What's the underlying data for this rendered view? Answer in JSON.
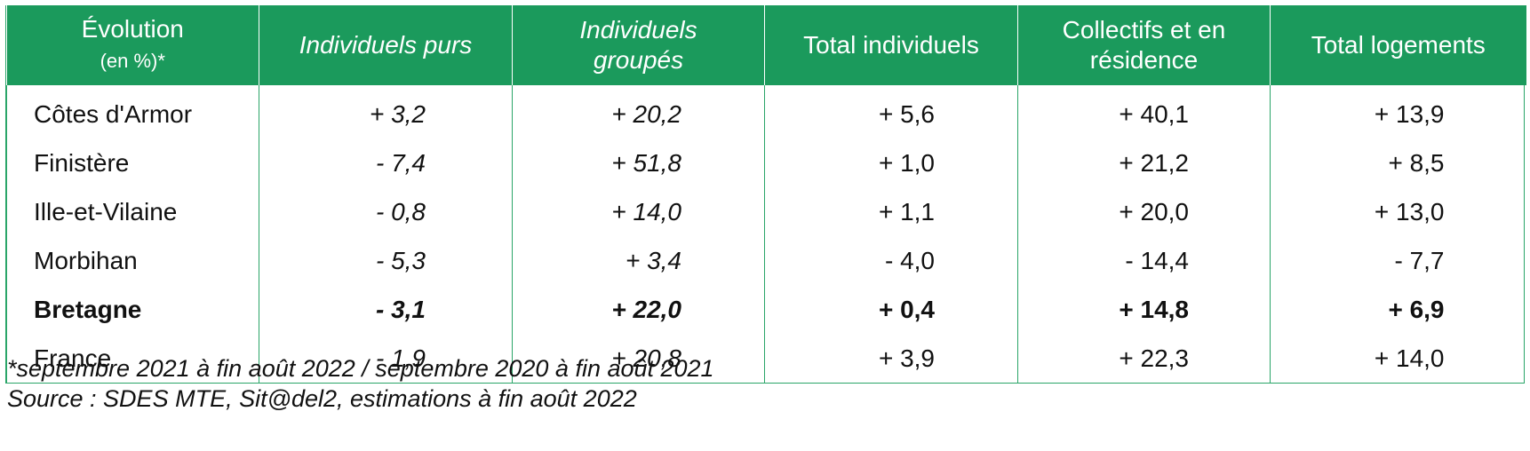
{
  "table": {
    "headers": [
      {
        "line1": "Évolution",
        "line2": "(en %)*"
      },
      {
        "label": "Individuels purs"
      },
      {
        "line1": "Individuels",
        "line2": "groupés"
      },
      {
        "label": "Total individuels"
      },
      {
        "line1": "Collectifs et en",
        "line2": "résidence"
      },
      {
        "label": "Total logements"
      }
    ],
    "rows": [
      {
        "name": "Côtes d'Armor",
        "values": [
          "+ 3,2",
          "+ 20,2",
          "+ 5,6",
          "+ 40,1",
          "+ 13,9"
        ]
      },
      {
        "name": "Finistère",
        "values": [
          "- 7,4",
          "+ 51,8",
          "+ 1,0",
          "+ 21,2",
          "+ 8,5"
        ]
      },
      {
        "name": "Ille-et-Vilaine",
        "values": [
          "- 0,8",
          "+ 14,0",
          "+ 1,1",
          "+ 20,0",
          "+ 13,0"
        ]
      },
      {
        "name": "Morbihan",
        "values": [
          "- 5,3",
          "+ 3,4",
          "- 4,0",
          "- 14,4",
          "- 7,7"
        ]
      },
      {
        "name": "Bretagne",
        "values": [
          "- 3,1",
          "+ 22,0",
          "+ 0,4",
          "+ 14,8",
          "+ 6,9"
        ]
      },
      {
        "name": "France",
        "values": [
          "- 1,9",
          "+ 20,8",
          "+ 3,9",
          "+ 22,3",
          "+ 14,0"
        ]
      }
    ],
    "header_color": "#1b9a5c",
    "border_color": "#2aa568"
  },
  "notes": {
    "period": "*septembre 2021 à fin août 2022 / septembre 2020 à fin août 2021",
    "source": "Source : SDES MTE, Sit@del2, estimations à fin août 2022"
  }
}
